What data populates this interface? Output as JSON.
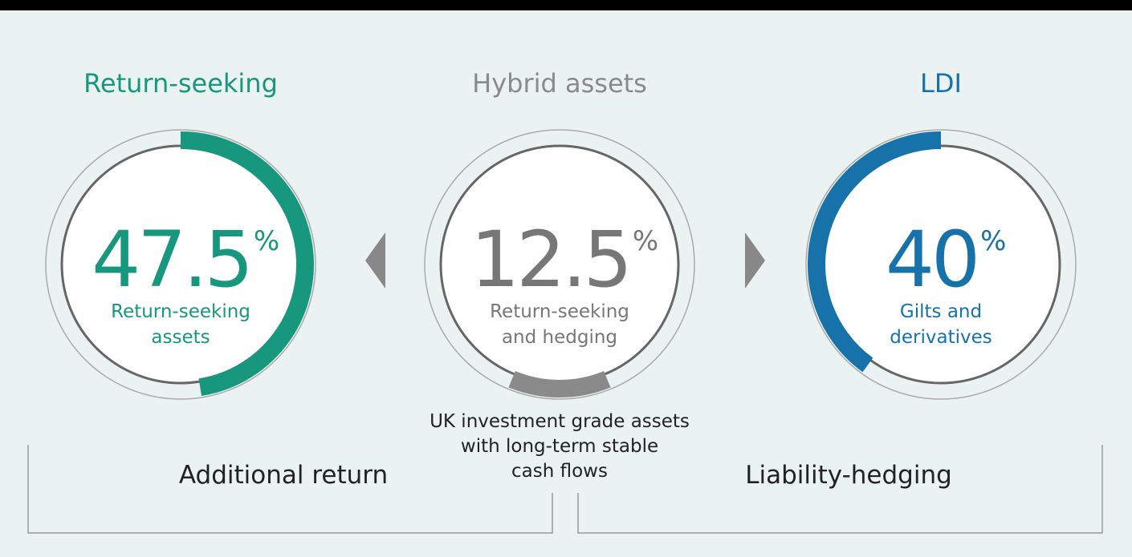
{
  "panels": [
    {
      "heading": "Return-seeking",
      "value": 47.5,
      "unit": "%",
      "label": [
        "Return-seeking",
        "assets"
      ],
      "color": "#17977d"
    },
    {
      "heading": "Hybrid assets",
      "value": 12.5,
      "unit": "%",
      "label": [
        "Return-seeking",
        "and hedging"
      ],
      "color": "#8a8a8a"
    },
    {
      "heading": "LDI",
      "value": 40,
      "unit": "%",
      "label": [
        "Gilts and",
        "derivatives"
      ],
      "color": "#1672a8"
    }
  ],
  "note": [
    "UK investment grade assets",
    "with long-term stable",
    "cash flows"
  ],
  "footer": {
    "left": "Additional return",
    "right": "Liability-hedging"
  }
}
